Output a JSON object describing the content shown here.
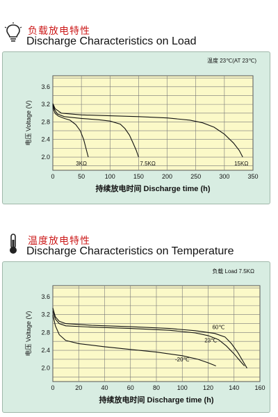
{
  "sections": [
    {
      "title_zh": "负载放电特性",
      "title_en": "Discharge Characteristics on Load",
      "icon": "lightbulb-icon"
    },
    {
      "title_zh": "温度放电特性",
      "title_en": "Discharge Characteristics on Temperature",
      "icon": "thermometer-icon"
    }
  ],
  "chart_data": [
    {
      "type": "line",
      "annotation": "温度 23℃(AT 23℃)",
      "ylabel": "电压  Voltage (V)",
      "xlabel": "持续放电时间    Discharge time (h)",
      "xlim": [
        0,
        350
      ],
      "ylim": [
        1.7,
        3.85
      ],
      "xticks": [
        0,
        50,
        100,
        150,
        200,
        250,
        300,
        350
      ],
      "yticks": [
        2.0,
        2.4,
        2.8,
        3.2,
        3.6
      ],
      "grid": true,
      "series": [
        {
          "name": "3KΩ",
          "x": [
            0,
            2,
            5,
            10,
            20,
            30,
            40,
            48,
            54,
            58,
            62
          ],
          "y": [
            3.18,
            3.05,
            2.98,
            2.93,
            2.88,
            2.84,
            2.74,
            2.6,
            2.4,
            2.2,
            2.0
          ]
        },
        {
          "name": "7.5KΩ",
          "x": [
            0,
            3,
            8,
            20,
            50,
            80,
            100,
            118,
            126,
            134,
            141,
            146,
            150
          ],
          "y": [
            3.2,
            3.08,
            2.98,
            2.92,
            2.88,
            2.85,
            2.82,
            2.75,
            2.65,
            2.5,
            2.3,
            2.15,
            2.0
          ]
        },
        {
          "name": "15KΩ",
          "x": [
            0,
            4,
            15,
            50,
            100,
            150,
            200,
            240,
            262,
            282,
            300,
            316,
            326,
            332
          ],
          "y": [
            3.22,
            3.1,
            3.0,
            2.96,
            2.94,
            2.92,
            2.89,
            2.84,
            2.78,
            2.68,
            2.52,
            2.32,
            2.15,
            2.0
          ]
        }
      ]
    },
    {
      "type": "line",
      "annotation": "负载  Load 7.5KΩ",
      "ylabel": "电压  Voltage (V)",
      "xlabel": "持续放电时间    Discharge time (h)",
      "xlim": [
        0,
        160
      ],
      "ylim": [
        1.7,
        3.85
      ],
      "xticks": [
        0,
        20,
        40,
        60,
        80,
        100,
        120,
        140,
        160
      ],
      "yticks": [
        2.0,
        2.4,
        2.8,
        3.2,
        3.6
      ],
      "grid": true,
      "series": [
        {
          "name": "60℃",
          "x": [
            0,
            2,
            5,
            10,
            30,
            60,
            90,
            110,
            125,
            133,
            138,
            143,
            147,
            150
          ],
          "y": [
            3.35,
            3.15,
            3.05,
            3.0,
            2.96,
            2.93,
            2.89,
            2.84,
            2.78,
            2.7,
            2.55,
            2.35,
            2.15,
            2.0
          ]
        },
        {
          "name": "23℃",
          "x": [
            0,
            2,
            5,
            10,
            30,
            60,
            90,
            110,
            120,
            128,
            134,
            140,
            145,
            148
          ],
          "y": [
            3.28,
            3.1,
            3.0,
            2.95,
            2.92,
            2.89,
            2.85,
            2.79,
            2.73,
            2.64,
            2.5,
            2.32,
            2.15,
            2.05
          ]
        },
        {
          "name": "-20℃",
          "x": [
            0,
            2,
            5,
            10,
            20,
            40,
            60,
            80,
            100,
            112,
            120,
            126
          ],
          "y": [
            3.2,
            2.95,
            2.75,
            2.62,
            2.55,
            2.48,
            2.42,
            2.36,
            2.28,
            2.2,
            2.12,
            2.05
          ]
        }
      ]
    }
  ]
}
